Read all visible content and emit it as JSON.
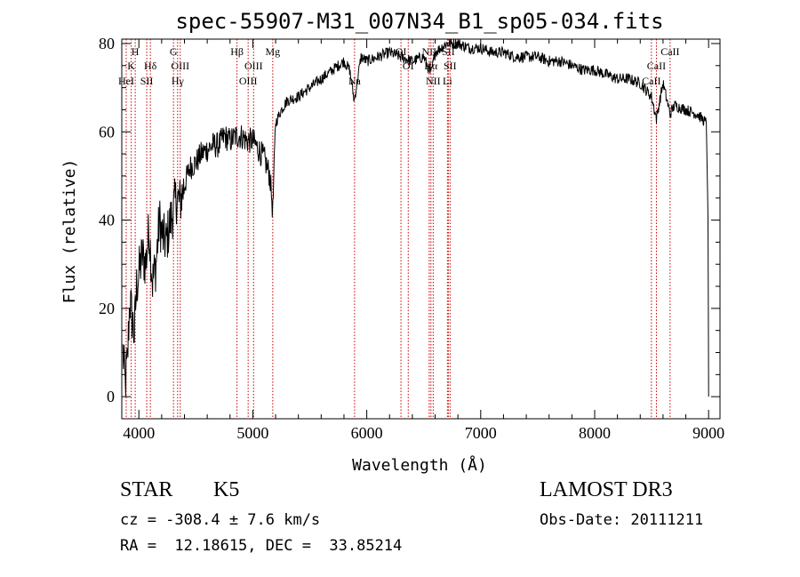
{
  "chart_data": {
    "type": "line",
    "title": "spec-55907-M31_007N34_B1_sp05-034.fits",
    "xlabel": "Wavelength (Å)",
    "ylabel": "Flux (relative)",
    "xlim": [
      3850,
      9100
    ],
    "ylim": [
      -5,
      81
    ],
    "xticks": [
      4000,
      5000,
      6000,
      7000,
      8000,
      9000
    ],
    "yticks": [
      0,
      20,
      40,
      60,
      80
    ],
    "grid": false,
    "line_color": "#000000",
    "marker_color": "#cc0000",
    "series": [
      {
        "x": [
          3860,
          3880,
          3900,
          3920,
          3940,
          3960,
          3980,
          4000,
          4030,
          4060,
          4090,
          4120,
          4150,
          4180,
          4210,
          4240,
          4270,
          4300,
          4330,
          4360,
          4400,
          4450,
          4500,
          4550,
          4600,
          4650,
          4700,
          4750,
          4800,
          4850,
          4900,
          4950,
          5000,
          5050,
          5100,
          5150,
          5175,
          5200,
          5250,
          5300,
          5400,
          5500,
          5600,
          5700,
          5800,
          5850,
          5890,
          5950,
          6000,
          6100,
          6200,
          6300,
          6400,
          6500,
          6563,
          6600,
          6700,
          6800,
          6900,
          7000,
          7100,
          7200,
          7300,
          7400,
          7500,
          7600,
          7700,
          7800,
          7900,
          8000,
          8100,
          8200,
          8300,
          8400,
          8498,
          8542,
          8600,
          8662,
          8700,
          8800,
          8900,
          8980,
          8995,
          9000
        ],
        "y": [
          10,
          3,
          8,
          22,
          18,
          14,
          25,
          28,
          32,
          30,
          38,
          26,
          30,
          40,
          36,
          35,
          39,
          42,
          45,
          44,
          48,
          52,
          53,
          55,
          56,
          57,
          57,
          59,
          58,
          59,
          59,
          58,
          58,
          56,
          54,
          50,
          42,
          62,
          65,
          67,
          68,
          70,
          72,
          74,
          76,
          74,
          67,
          77,
          76,
          77,
          78,
          77,
          76,
          77,
          73,
          78,
          80,
          80,
          79,
          79,
          78,
          78,
          77,
          77,
          77,
          76,
          76,
          75,
          74,
          74,
          73,
          72,
          72,
          71,
          68,
          63,
          71,
          64,
          66,
          65,
          64,
          62,
          40,
          0
        ]
      }
    ],
    "lines": [
      {
        "name": "H",
        "x": 3968,
        "row": 1
      },
      {
        "name": "K",
        "x": 3933,
        "row": 2
      },
      {
        "name": "HeI",
        "x": 3889,
        "row": 3
      },
      {
        "name": "SII",
        "x": 4069,
        "row": 3
      },
      {
        "name": "Hδ",
        "x": 4101,
        "row": 2
      },
      {
        "name": "G",
        "x": 4304,
        "row": 1
      },
      {
        "name": "OIII",
        "x": 4363,
        "row": 2
      },
      {
        "name": "Hγ",
        "x": 4340,
        "row": 3
      },
      {
        "name": "Hβ",
        "x": 4861,
        "row": 1
      },
      {
        "name": "OIII",
        "x": 4959,
        "row": 3
      },
      {
        "name": "OIII",
        "x": 5007,
        "row": 2
      },
      {
        "name": "Mg",
        "x": 5175,
        "row": 1
      },
      {
        "name": "Na",
        "x": 5893,
        "row": 3
      },
      {
        "name": "OI",
        "x": 6300,
        "row": 1
      },
      {
        "name": "OI",
        "x": 6364,
        "row": 2
      },
      {
        "name": "NII",
        "x": 6548,
        "row": 1
      },
      {
        "name": "Hα",
        "x": 6563,
        "row": 2
      },
      {
        "name": "NII",
        "x": 6583,
        "row": 3
      },
      {
        "name": "SII",
        "x": 6716,
        "row": 1
      },
      {
        "name": "SII",
        "x": 6731,
        "row": 2
      },
      {
        "name": "Li",
        "x": 6708,
        "row": 3
      },
      {
        "name": "CaII",
        "x": 8498,
        "row": 3
      },
      {
        "name": "CaII",
        "x": 8542,
        "row": 2
      },
      {
        "name": "CaII",
        "x": 8662,
        "row": 1
      }
    ]
  },
  "info": {
    "class": "STAR",
    "subclass": "K5",
    "cz": "cz = -308.4 ± 7.6 km/s",
    "radec": "RA =  12.18615, DEC =  33.85214",
    "survey": "LAMOST DR3",
    "obsdate": "Obs-Date: 20111211"
  }
}
